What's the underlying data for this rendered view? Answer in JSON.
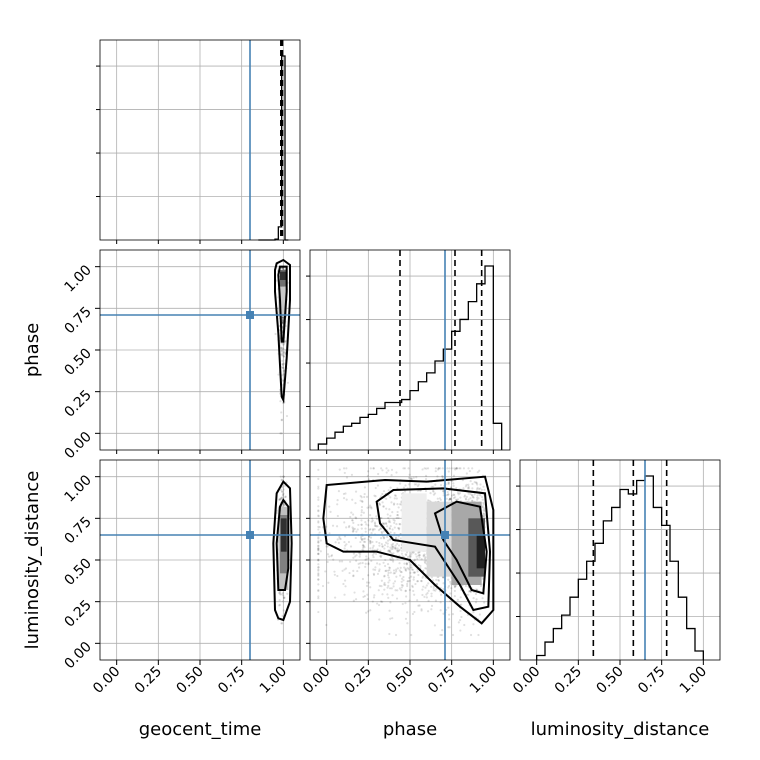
{
  "chart_data": {
    "type": "corner",
    "parameters": [
      "geocent_time",
      "phase",
      "luminosity_distance"
    ],
    "tick_labels": [
      "0.00",
      "0.25",
      "0.50",
      "0.75",
      "1.00"
    ],
    "tick_values": [
      0,
      0.25,
      0.5,
      0.75,
      1.0
    ],
    "axis_range": [
      -0.1,
      1.1
    ],
    "truth_values": {
      "geocent_time": 0.8,
      "phase": 0.71,
      "luminosity_distance": 0.65
    },
    "quantiles": {
      "geocent_time": [
        0.985,
        0.99,
        0.995
      ],
      "phase": [
        0.44,
        0.77,
        0.93
      ],
      "luminosity_distance": [
        0.34,
        0.58,
        0.78
      ]
    },
    "histograms": {
      "geocent_time": {
        "edges": [
          0.85,
          0.87,
          0.89,
          0.91,
          0.93,
          0.95,
          0.97,
          0.99,
          1.01,
          1.03
        ],
        "counts": [
          0,
          0,
          0,
          0,
          0,
          2,
          30,
          420,
          0
        ]
      },
      "phase": {
        "edges": [
          -0.05,
          0.0,
          0.05,
          0.1,
          0.15,
          0.2,
          0.25,
          0.3,
          0.35,
          0.4,
          0.45,
          0.5,
          0.55,
          0.6,
          0.65,
          0.7,
          0.75,
          0.8,
          0.85,
          0.9,
          0.95,
          1.0,
          1.05
        ],
        "counts": [
          2,
          4,
          6,
          8,
          9,
          11,
          12,
          14,
          16,
          16,
          17,
          20,
          23,
          26,
          30,
          34,
          40,
          44,
          50,
          56,
          62,
          9
        ]
      },
      "luminosity_distance": {
        "edges": [
          0.0,
          0.05,
          0.1,
          0.15,
          0.2,
          0.25,
          0.3,
          0.35,
          0.4,
          0.45,
          0.5,
          0.55,
          0.6,
          0.65,
          0.7,
          0.75,
          0.8,
          0.85,
          0.9,
          0.95,
          1.0
        ],
        "counts": [
          1,
          4,
          7,
          10,
          14,
          18,
          22,
          26,
          31,
          34,
          38,
          37,
          40,
          41,
          34,
          30,
          22,
          14,
          7,
          2
        ]
      }
    },
    "grid": true
  }
}
